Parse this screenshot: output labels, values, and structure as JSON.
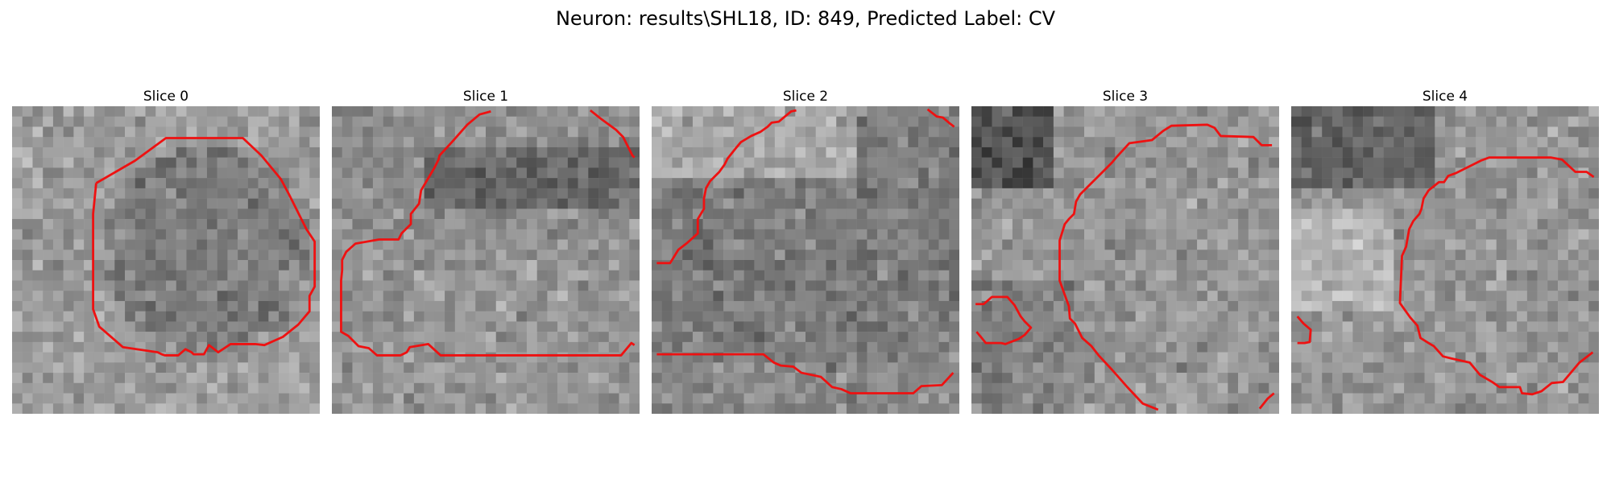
{
  "figure": {
    "title": "Neuron: results\\SHL18, ID: 849, Predicted Label: CV"
  },
  "slices": [
    {
      "title": "Slice 0"
    },
    {
      "title": "Slice 1"
    },
    {
      "title": "Slice 2"
    },
    {
      "title": "Slice 3"
    },
    {
      "title": "Slice 4"
    }
  ],
  "colors": {
    "contour": "#ee1111",
    "background": "#ffffff"
  }
}
